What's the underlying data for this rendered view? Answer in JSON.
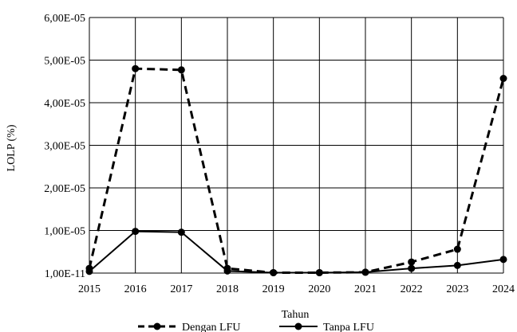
{
  "chart_data": {
    "type": "line",
    "xlabel": "Tahun",
    "ylabel": "LOLP  (%)",
    "x": [
      "2015",
      "2016",
      "2017",
      "2018",
      "2019",
      "2020",
      "2021",
      "2022",
      "2023",
      "2024"
    ],
    "y_ticks": [
      "1,00E-11",
      "1,00E-05",
      "2,00E-05",
      "3,00E-05",
      "4,00E-05",
      "5,00E-05",
      "6,00E-05"
    ],
    "ylim": [
      0,
      6e-05
    ],
    "grid": true,
    "legend_position": "bottom",
    "series": [
      {
        "name": "Dengan LFU",
        "style": "dashed",
        "color": "#000000",
        "values": [
          1.1e-06,
          4.8e-05,
          4.77e-05,
          1.1e-06,
          1e-07,
          1e-07,
          2e-07,
          2.6e-06,
          5.6e-06,
          4.57e-05
        ]
      },
      {
        "name": "Tanpa LFU",
        "style": "solid",
        "color": "#000000",
        "values": [
          4e-07,
          9.8e-06,
          9.6e-06,
          5e-07,
          1e-07,
          1e-07,
          2e-07,
          1.1e-06,
          1.8e-06,
          3.2e-06
        ]
      }
    ]
  }
}
